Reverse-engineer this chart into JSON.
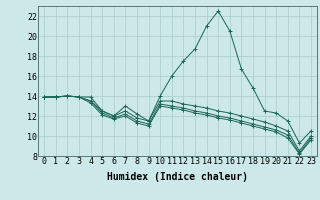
{
  "xlabel": "Humidex (Indice chaleur)",
  "ylabel": "",
  "bg_color": "#cce8e8",
  "grid_color": "#aacccc",
  "line_color": "#1a6655",
  "xlim": [
    -0.5,
    23.5
  ],
  "ylim": [
    8,
    23
  ],
  "yticks": [
    8,
    10,
    12,
    14,
    16,
    18,
    20,
    22
  ],
  "xticks": [
    0,
    1,
    2,
    3,
    4,
    5,
    6,
    7,
    8,
    9,
    10,
    11,
    12,
    13,
    14,
    15,
    16,
    17,
    18,
    19,
    20,
    21,
    22,
    23
  ],
  "series": [
    [
      13.9,
      13.9,
      14.0,
      13.9,
      13.9,
      12.5,
      12.0,
      13.0,
      12.2,
      11.5,
      14.0,
      16.0,
      17.5,
      18.7,
      21.0,
      22.5,
      20.5,
      16.7,
      14.8,
      12.5,
      12.3,
      11.5,
      9.3,
      10.5
    ],
    [
      13.9,
      13.9,
      14.0,
      13.9,
      13.5,
      12.5,
      12.0,
      12.5,
      11.8,
      11.5,
      13.5,
      13.5,
      13.2,
      13.0,
      12.8,
      12.5,
      12.3,
      12.0,
      11.7,
      11.4,
      11.0,
      10.5,
      8.5,
      10.0
    ],
    [
      13.9,
      13.9,
      14.0,
      13.9,
      13.5,
      12.3,
      11.8,
      12.2,
      11.5,
      11.2,
      13.2,
      13.0,
      12.8,
      12.5,
      12.3,
      12.0,
      11.8,
      11.5,
      11.2,
      10.9,
      10.6,
      10.1,
      8.3,
      9.8
    ],
    [
      13.9,
      13.9,
      14.0,
      13.9,
      13.3,
      12.1,
      11.7,
      12.0,
      11.3,
      11.0,
      13.0,
      12.8,
      12.6,
      12.3,
      12.1,
      11.8,
      11.6,
      11.3,
      11.0,
      10.7,
      10.4,
      9.8,
      8.2,
      9.6
    ]
  ],
  "tick_fontsize": 6,
  "xlabel_fontsize": 7
}
